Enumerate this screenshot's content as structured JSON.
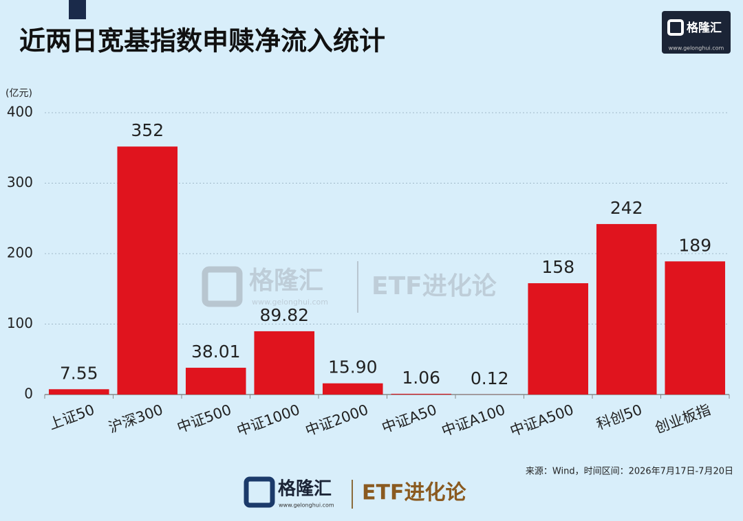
{
  "chart_data": {
    "type": "bar",
    "title": "近两日宽基指数申赎净流入统计",
    "unit_label": "(亿元)",
    "categories": [
      "上证50",
      "沪深300",
      "中证500",
      "中证1000",
      "中证2000",
      "中证A50",
      "中证A100",
      "中证A500",
      "科创50",
      "创业板指"
    ],
    "values": [
      7.55,
      352,
      38.01,
      89.82,
      15.9,
      1.06,
      0.12,
      158,
      242,
      189
    ],
    "value_labels": [
      "7.55",
      "352",
      "38.01",
      "89.82",
      "15.90",
      "1.06",
      "0.12",
      "158",
      "242",
      "189"
    ],
    "color": "#e0141e",
    "ylim": [
      0,
      400
    ],
    "yticks": [
      0,
      100,
      200,
      300,
      400
    ],
    "grid": true,
    "source": "来源：Wind，时间区间：2026年7月17日-7月20日"
  },
  "brand": {
    "name": "格隆汇",
    "url": "www.gelonghui.com",
    "column": "ETF进化论"
  }
}
